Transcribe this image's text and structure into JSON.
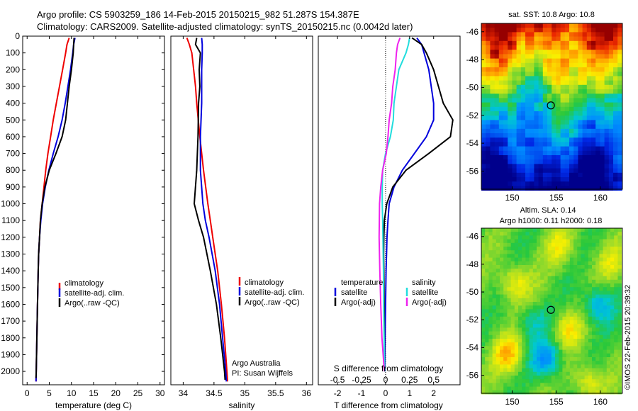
{
  "header": {
    "line1": "Argo profile: CS 5903259_186 14-Feb-2015 20150215_982 51.287S 154.387E",
    "line2": "Climatology: CARS2009. Satellite-adjusted climatology: synTS_20150215.nc (0.0042d later)"
  },
  "colors": {
    "climatology": "#ee0000",
    "satellite": "#0000dd",
    "argo": "#000000",
    "satellite_s": "#22dddd",
    "argo_s": "#ee22ee"
  },
  "chart_data": [
    {
      "type": "line",
      "id": "temperature",
      "xlabel": "temperature (deg C)",
      "xlim": [
        -1,
        31
      ],
      "xticks": [
        0,
        5,
        10,
        15,
        20,
        25,
        30
      ],
      "ylim": [
        2080,
        0
      ],
      "yticks": [
        0,
        100,
        200,
        300,
        400,
        500,
        600,
        700,
        800,
        900,
        1000,
        1100,
        1200,
        1300,
        1400,
        1500,
        1600,
        1700,
        1800,
        1900,
        2000
      ],
      "legend": [
        "climatology",
        "satellite-adj. clim.",
        "Argo(..raw -QC)"
      ],
      "series": [
        {
          "name": "climatology",
          "color": "#ee0000",
          "depth": [
            10,
            50,
            100,
            200,
            300,
            400,
            500,
            600,
            700,
            800,
            900,
            1000,
            1100,
            1200,
            1300,
            1400,
            1600,
            1800,
            2000,
            2060
          ],
          "values": [
            9.5,
            9.0,
            8.7,
            8.0,
            7.3,
            6.6,
            5.9,
            5.3,
            4.7,
            4.2,
            3.8,
            3.4,
            3.0,
            2.8,
            2.6,
            2.5,
            2.35,
            2.2,
            2.05,
            2.0
          ]
        },
        {
          "name": "satellite-adj. clim.",
          "color": "#0000dd",
          "depth": [
            10,
            50,
            100,
            200,
            300,
            400,
            500,
            600,
            700,
            800,
            900,
            1000,
            1100,
            1200,
            1300,
            1400,
            1600,
            1800,
            2000,
            2060
          ],
          "values": [
            10.8,
            10.5,
            10.3,
            9.8,
            9.2,
            8.6,
            7.9,
            7.0,
            5.9,
            4.9,
            4.1,
            3.5,
            3.1,
            2.8,
            2.6,
            2.5,
            2.35,
            2.2,
            2.05,
            2.0
          ]
        },
        {
          "name": "Argo(..raw -QC)",
          "color": "#000000",
          "depth": [
            10,
            50,
            100,
            200,
            300,
            400,
            500,
            600,
            700,
            800,
            900,
            1000,
            1100,
            1200,
            1300,
            1400,
            1600,
            1800,
            2000,
            2040
          ],
          "values": [
            10.6,
            10.5,
            10.4,
            10.0,
            9.5,
            9.1,
            8.7,
            7.9,
            6.5,
            5.0,
            4.0,
            3.4,
            3.0,
            2.8,
            2.6,
            2.5,
            2.35,
            2.2,
            2.05,
            2.0
          ]
        }
      ]
    },
    {
      "type": "line",
      "id": "salinity",
      "xlabel": "salinity",
      "xlim": [
        33.8,
        36.1
      ],
      "xticks": [
        34,
        34.5,
        35,
        35.5,
        36
      ],
      "ylim": [
        2080,
        0
      ],
      "legend": [
        "climatology",
        "satellite-adj. clim.",
        "Argo(..raw -QC)"
      ],
      "annotation": [
        "Argo Australia",
        "PI: Susan Wijffels"
      ],
      "series": [
        {
          "name": "climatology",
          "color": "#ee0000",
          "depth": [
            10,
            50,
            100,
            200,
            300,
            400,
            600,
            800,
            1000,
            1100,
            1200,
            1400,
            1600,
            1800,
            2000,
            2060
          ],
          "values": [
            34.06,
            34.1,
            34.14,
            34.17,
            34.2,
            34.22,
            34.27,
            34.33,
            34.4,
            34.44,
            34.48,
            34.56,
            34.62,
            34.67,
            34.71,
            34.72
          ]
        },
        {
          "name": "satellite-adj. clim.",
          "color": "#0000dd",
          "depth": [
            10,
            50,
            100,
            200,
            300,
            400,
            600,
            800,
            1000,
            1100,
            1200,
            1400,
            1600,
            1800,
            2000,
            2060
          ],
          "values": [
            34.3,
            34.31,
            34.31,
            34.3,
            34.3,
            34.3,
            34.28,
            34.28,
            34.32,
            34.36,
            34.42,
            34.52,
            34.59,
            34.64,
            34.69,
            34.7
          ]
        },
        {
          "name": "Argo(..raw -QC)",
          "color": "#000000",
          "depth": [
            10,
            50,
            100,
            200,
            300,
            400,
            600,
            800,
            1000,
            1100,
            1200,
            1400,
            1600,
            1800,
            2000,
            2050
          ],
          "values": [
            34.22,
            34.2,
            34.28,
            34.26,
            34.27,
            34.25,
            34.24,
            34.22,
            34.18,
            34.25,
            34.33,
            34.44,
            34.54,
            34.61,
            34.67,
            34.68
          ]
        }
      ]
    },
    {
      "type": "line",
      "id": "differences",
      "xlabel": "T difference from climatology",
      "xlim": [
        -2.8,
        3.1
      ],
      "xticks": [
        -2,
        -1,
        0,
        1,
        2
      ],
      "top_axis_label": "S difference from climatology",
      "top_ticks": [
        "-0.5",
        "-0.25",
        "0",
        "0.25",
        "0.5"
      ],
      "top_tick_t": [
        -2,
        -1,
        0,
        1,
        2
      ],
      "ylim": [
        2080,
        0
      ],
      "legend_left_title": "temperature",
      "legend_right_title": "salinity",
      "legend_left": [
        "satellite",
        "Argo(-adj)"
      ],
      "legend_right": [
        "satellite",
        "Argo(-adj)"
      ],
      "series": [
        {
          "name": "temperature satellite",
          "color": "#0000dd",
          "depth": [
            10,
            50,
            100,
            200,
            300,
            400,
            500,
            600,
            700,
            800,
            900,
            1000,
            1100,
            1200,
            1300,
            1400,
            1600,
            1800,
            2000
          ],
          "values": [
            1.3,
            1.5,
            1.6,
            1.8,
            1.9,
            2.0,
            2.0,
            1.7,
            1.2,
            0.7,
            0.35,
            0.15,
            0.1,
            0.06,
            0.04,
            0.02,
            0.0,
            -0.02,
            -0.03
          ]
        },
        {
          "name": "temperature Argo(-adj)",
          "color": "#000000",
          "depth": [
            10,
            50,
            100,
            200,
            300,
            400,
            500,
            600,
            700,
            800,
            900,
            1000,
            1100,
            1200,
            1300,
            1400,
            1600,
            1800,
            2000
          ],
          "values": [
            1.1,
            1.5,
            1.7,
            2.0,
            2.2,
            2.4,
            2.8,
            2.7,
            1.8,
            0.85,
            0.3,
            0.05,
            -0.05,
            -0.07,
            -0.08,
            -0.07,
            -0.06,
            -0.05,
            -0.04
          ]
        },
        {
          "name": "salinity satellite",
          "color": "#22dddd",
          "depth": [
            10,
            50,
            100,
            200,
            300,
            400,
            500,
            600,
            700,
            800,
            900,
            1000,
            1100,
            1200,
            1400,
            1600,
            1800,
            2000
          ],
          "values": [
            1.0,
            0.95,
            0.85,
            0.55,
            0.45,
            0.35,
            0.32,
            0.2,
            0.0,
            -0.12,
            -0.14,
            -0.14,
            -0.12,
            -0.11,
            -0.09,
            -0.08,
            -0.06,
            -0.04
          ]
        },
        {
          "name": "salinity Argo(-adj)",
          "color": "#ee22ee",
          "depth": [
            10,
            50,
            100,
            200,
            300,
            400,
            500,
            600,
            700,
            800,
            900,
            1000,
            1100,
            1200,
            1400,
            1600,
            1800,
            2000
          ],
          "values": [
            0.6,
            0.5,
            0.45,
            0.4,
            0.3,
            0.25,
            0.15,
            0.1,
            0.03,
            -0.12,
            -0.2,
            -0.25,
            -0.26,
            -0.27,
            -0.24,
            -0.2,
            -0.15,
            -0.05
          ]
        }
      ]
    },
    {
      "type": "heatmap",
      "id": "sst_map",
      "title": "sat. SST: 10.8  Argo: 10.8",
      "xlim": [
        146.5,
        162.5
      ],
      "ylim": [
        -57.3,
        -45.4
      ],
      "xticks": [
        "150",
        "155",
        "160"
      ],
      "xtick_values": [
        150,
        155,
        160
      ],
      "yticks": [
        "-46",
        "-48",
        "-50",
        "-52",
        "-54",
        "-56"
      ],
      "ytick_values": [
        -46,
        -48,
        -50,
        -52,
        -54,
        -56
      ],
      "float_position": [
        154.387,
        -51.287
      ],
      "color_scale": "cold-to-warm: north warm (red/orange), south cold (blue)"
    },
    {
      "type": "heatmap",
      "id": "sla_map",
      "title_line1": "Altim. SLA: 0.14",
      "title_line2": "Argo h1000: 0.11 h2000: 0.18",
      "xlim": [
        146.5,
        162.5
      ],
      "ylim": [
        -57.3,
        -45.4
      ],
      "xticks": [
        "150",
        "155",
        "160"
      ],
      "xtick_values": [
        150,
        155,
        160
      ],
      "yticks": [
        "-46",
        "-48",
        "-50",
        "-52",
        "-54",
        "-56"
      ],
      "ytick_values": [
        -46,
        -48,
        -50,
        -52,
        -54,
        -56
      ],
      "float_position": [
        154.387,
        -51.287
      ],
      "color_scale": "sea level anomaly: green near zero, red/orange positive, blue negative"
    }
  ],
  "footer": {
    "credit": "©IMOS 22-Feb-2015 20:39:32"
  }
}
